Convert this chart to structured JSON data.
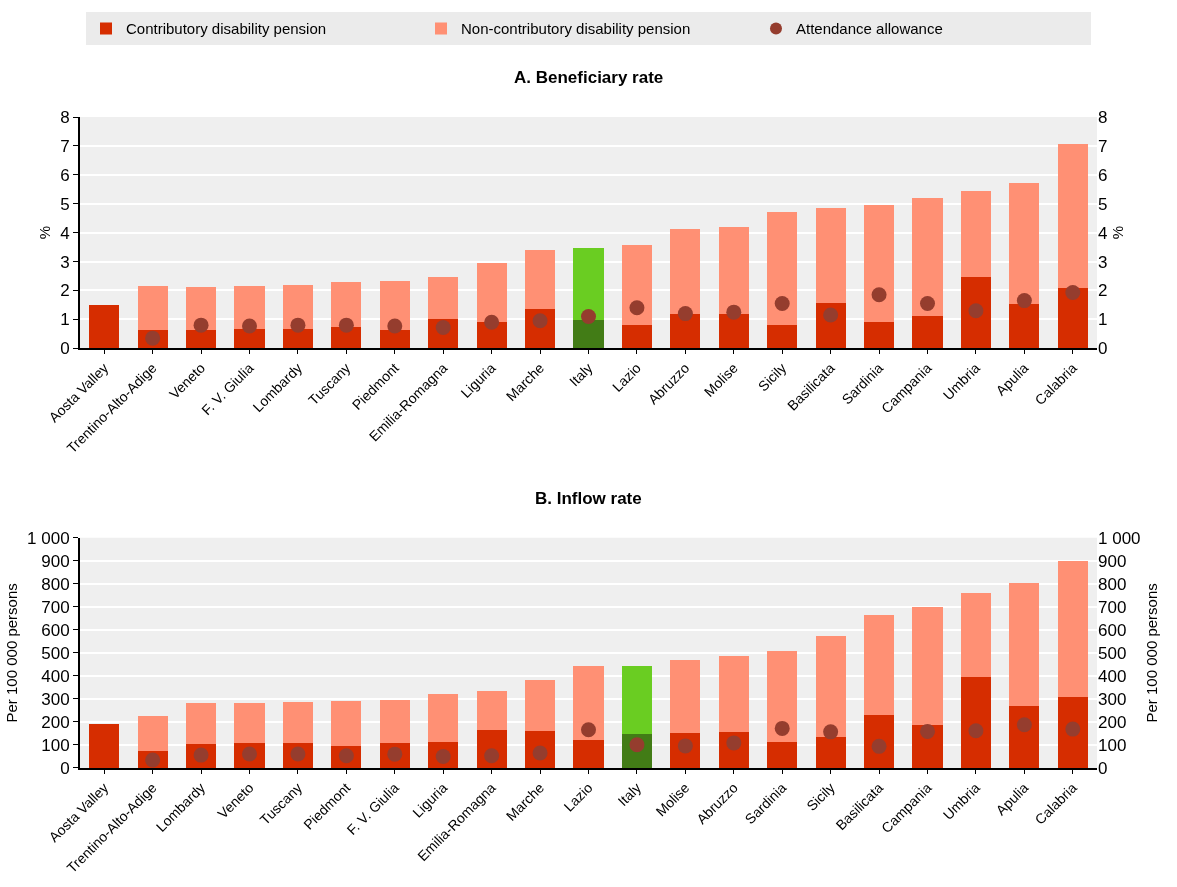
{
  "chart_data": [
    {
      "type": "bar",
      "title": "A. Beneficiary rate",
      "ylabel": "%",
      "y2label": "%",
      "stacked": true,
      "grid": true,
      "legend": "top",
      "categories": [
        "Aosta Valley",
        "Trentino-Alto-Adige",
        "Veneto",
        "F. V. Giulia",
        "Lombardy",
        "Tuscany",
        "Piedmont",
        "Emilia-Romagna",
        "Liguria",
        "Marche",
        "Italy",
        "Lazio",
        "Abruzzo",
        "Molise",
        "Sicily",
        "Basilicata",
        "Sardinia",
        "Campania",
        "Umbria",
        "Apulia",
        "Calabria"
      ],
      "ylim": [
        0,
        8
      ],
      "yticks": [
        0,
        1,
        2,
        3,
        4,
        5,
        6,
        7,
        8
      ],
      "y2lim": [
        0,
        8
      ],
      "y2ticks": [
        0,
        1,
        2,
        3,
        4,
        5,
        6,
        7,
        8
      ],
      "series": [
        {
          "name": "Contributory disability pension",
          "color": "#d62d00",
          "colors": [
            "#d62d00",
            "#d62d00",
            "#d62d00",
            "#d62d00",
            "#d62d00",
            "#d62d00",
            "#d62d00",
            "#d62d00",
            "#d62d00",
            "#d62d00",
            "#427c16",
            "#d62d00",
            "#d62d00",
            "#d62d00",
            "#d62d00",
            "#d62d00",
            "#d62d00",
            "#d62d00",
            "#d62d00",
            "#d62d00",
            "#d62d00"
          ],
          "values": [
            1.5,
            0.65,
            0.63,
            0.68,
            0.68,
            0.72,
            0.65,
            1.03,
            0.9,
            1.35,
            0.97,
            0.82,
            1.2,
            1.2,
            0.82,
            1.58,
            0.9,
            1.1,
            2.45,
            1.52,
            2.07
          ]
        },
        {
          "name": "Non-contributory disability pension",
          "color": "#ff9074",
          "colors": [
            "#ff9074",
            "#ff9074",
            "#ff9074",
            "#ff9074",
            "#ff9074",
            "#ff9074",
            "#ff9074",
            "#ff9074",
            "#ff9074",
            "#ff9074",
            "#6acd22",
            "#ff9074",
            "#ff9074",
            "#ff9074",
            "#ff9074",
            "#ff9074",
            "#ff9074",
            "#ff9074",
            "#ff9074",
            "#ff9074",
            "#ff9074"
          ],
          "values": [
            null,
            1.5,
            1.49,
            1.47,
            1.52,
            1.56,
            1.68,
            1.44,
            2.05,
            2.05,
            2.51,
            2.75,
            2.93,
            3.0,
            3.88,
            3.27,
            4.07,
            4.1,
            2.98,
            4.2,
            4.98
          ]
        },
        {
          "name": "Attendance allowance",
          "type": "scatter",
          "marker": "circle",
          "color": "#953d2e",
          "values": [
            null,
            0.35,
            0.8,
            0.77,
            0.8,
            0.8,
            0.77,
            0.72,
            0.9,
            0.95,
            1.1,
            1.4,
            1.2,
            1.25,
            1.55,
            1.15,
            1.85,
            1.55,
            1.3,
            1.65,
            1.93
          ]
        }
      ]
    },
    {
      "type": "bar",
      "title": "B. Inflow rate",
      "ylabel": "Per 100 000 persons",
      "y2label": "Per 100 000 persons",
      "stacked": true,
      "grid": true,
      "legend": "top",
      "categories": [
        "Aosta Valley",
        "Trentino-Alto-Adige",
        "Lombardy",
        "Veneto",
        "Tuscany",
        "Piedmont",
        "F. V. Giulia",
        "Liguria",
        "Emilia-Romagna",
        "Marche",
        "Lazio",
        "Italy",
        "Molise",
        "Abruzzo",
        "Sardinia",
        "Sicily",
        "Basilicata",
        "Campania",
        "Umbria",
        "Apulia",
        "Calabria"
      ],
      "ylim": [
        0,
        1000
      ],
      "yticks": [
        0,
        100,
        200,
        300,
        400,
        500,
        600,
        700,
        800,
        900,
        {
          "value": 1000,
          "label": "1 000"
        }
      ],
      "y2lim": [
        0,
        1000
      ],
      "y2ticks": [
        0,
        100,
        200,
        300,
        400,
        500,
        600,
        700,
        800,
        900,
        {
          "value": 1000,
          "label": "1 000"
        }
      ],
      "series": [
        {
          "name": "Contributory disability pension",
          "color": "#d62d00",
          "colors": [
            "#d62d00",
            "#d62d00",
            "#d62d00",
            "#d62d00",
            "#d62d00",
            "#d62d00",
            "#d62d00",
            "#d62d00",
            "#d62d00",
            "#d62d00",
            "#d62d00",
            "#427c16",
            "#d62d00",
            "#d62d00",
            "#d62d00",
            "#d62d00",
            "#d62d00",
            "#d62d00",
            "#d62d00",
            "#d62d00",
            "#d62d00"
          ],
          "values": [
            190,
            75,
            104,
            109,
            108,
            96,
            108,
            113,
            163,
            159,
            123,
            147,
            152,
            157,
            112,
            136,
            230,
            187,
            397,
            269,
            309
          ]
        },
        {
          "name": "Non-contributory disability pension",
          "color": "#ff9074",
          "colors": [
            "#ff9074",
            "#ff9074",
            "#ff9074",
            "#ff9074",
            "#ff9074",
            "#ff9074",
            "#ff9074",
            "#ff9074",
            "#ff9074",
            "#ff9074",
            "#ff9074",
            "#6acd22",
            "#ff9074",
            "#ff9074",
            "#ff9074",
            "#ff9074",
            "#ff9074",
            "#ff9074",
            "#ff9074",
            "#ff9074",
            "#ff9074"
          ],
          "values": [
            null,
            149,
            178,
            175,
            179,
            193,
            187,
            210,
            170,
            221,
            320,
            296,
            316,
            331,
            394,
            439,
            436,
            512,
            365,
            534,
            589
          ]
        },
        {
          "name": "Attendance allowance",
          "type": "scatter",
          "marker": "circle",
          "color": "#953d2e",
          "values": [
            null,
            35,
            56,
            61,
            61,
            53,
            60,
            50,
            53,
            65,
            166,
            101,
            96,
            109,
            172,
            157,
            94,
            159,
            162,
            188,
            169
          ]
        }
      ]
    }
  ]
}
